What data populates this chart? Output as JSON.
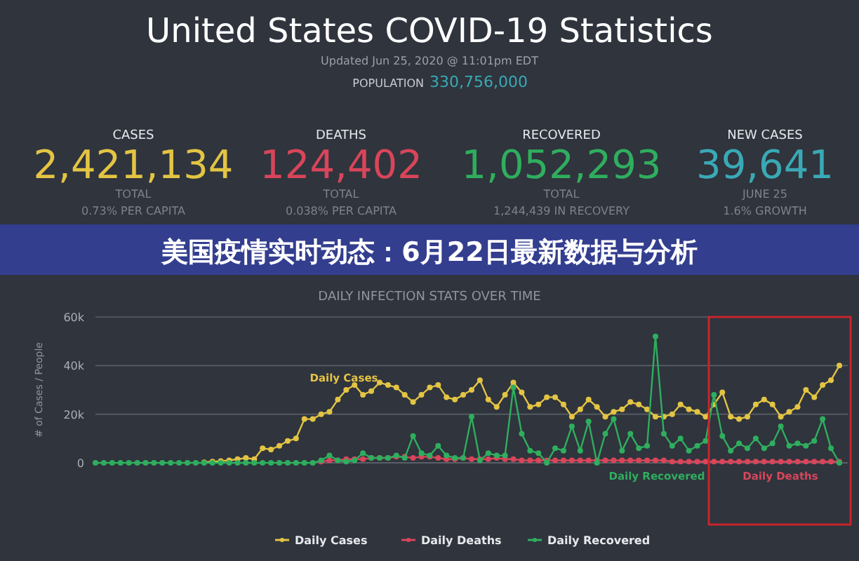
{
  "chart_data": [
    {
      "type": "other",
      "title": "United States COVID-19 Statistics",
      "subtitle": "Updated Jun 25, 2020 @ 11:01pm EDT",
      "annotations": [
        "POPULATION",
        "330,756,000",
        "CASES",
        "2,421,134",
        "TOTAL",
        "0.73% PER CAPITA",
        "DEATHS",
        "124,402",
        "TOTAL",
        "0.038% PER CAPITA",
        "RECOVERED",
        "1,052,293",
        "TOTAL",
        "1,244,439 IN RECOVERY",
        "NEW CASES",
        "39,641",
        "JUNE 25",
        "1.6% GROWTH",
        "美国疫情实时动态：6月22日最新数据与分析"
      ],
      "colors": [
        "#3aa9b5",
        "#e3c443",
        "#d9455a",
        "#2fae5e",
        "#3aa9b5"
      ]
    },
    {
      "type": "line",
      "title": "DAILY INFECTION STATS OVER TIME",
      "ylabel": "# of Cases / People",
      "categories": [
        null,
        null,
        null,
        null,
        null,
        null,
        null,
        null,
        null,
        null,
        null,
        null,
        null,
        null,
        null,
        null,
        null,
        null,
        null,
        null,
        null,
        null,
        null,
        null,
        null,
        null,
        null,
        null,
        null,
        null,
        null,
        null,
        null,
        null,
        null,
        null,
        null,
        null,
        null,
        null,
        null,
        null,
        null,
        null,
        null,
        null,
        null,
        null,
        null,
        null,
        null,
        null,
        null,
        null,
        null,
        null,
        null,
        null,
        null,
        null,
        null,
        null,
        null,
        null,
        null,
        null,
        null,
        null,
        null,
        null,
        null,
        null,
        null,
        null,
        null,
        null,
        null,
        null,
        null,
        null,
        null,
        null,
        null,
        null,
        null,
        null,
        null,
        null,
        null,
        null
      ],
      "ylim": [
        0,
        60000
      ],
      "yticks": [
        {
          "value": 0,
          "label": "0"
        },
        {
          "value": 20000,
          "label": "20k"
        },
        {
          "value": 40000,
          "label": "40k"
        },
        {
          "value": 60000,
          "label": "60k"
        }
      ],
      "grid": "y",
      "legend": "bottom",
      "marker": "circle",
      "series": [
        {
          "name": "Daily Cases",
          "color": "#e3c443",
          "values": [
            null,
            null,
            null,
            null,
            null,
            null,
            null,
            null,
            null,
            null,
            null,
            null,
            null,
            200,
            500,
            700,
            1000,
            1500,
            2000,
            1500,
            6000,
            5500,
            7000,
            9000,
            10000,
            18000,
            18000,
            20000,
            21000,
            26000,
            30000,
            32000,
            28000,
            29500,
            33000,
            32000,
            31000,
            28000,
            25000,
            28000,
            31000,
            32000,
            27000,
            26000,
            28000,
            30000,
            34000,
            26000,
            23000,
            28000,
            33000,
            29000,
            23000,
            24000,
            27000,
            27000,
            24000,
            19000,
            22000,
            26000,
            23000,
            19000,
            21000,
            22000,
            25000,
            24000,
            22000,
            19000,
            19000,
            20000,
            24000,
            22000,
            21000,
            19000,
            24000,
            29000,
            19000,
            18000,
            19000,
            24000,
            26000,
            24000,
            19000,
            21000,
            23000,
            30000,
            27000,
            32000,
            34000,
            40000
          ]
        },
        {
          "name": "Daily Deaths",
          "color": "#d9455a",
          "values": [
            null,
            null,
            null,
            null,
            null,
            null,
            null,
            null,
            null,
            null,
            null,
            null,
            null,
            null,
            null,
            null,
            null,
            null,
            null,
            null,
            null,
            null,
            null,
            null,
            null,
            null,
            null,
            500,
            1000,
            1000,
            1500,
            1500,
            1500,
            2000,
            2000,
            2000,
            2500,
            2500,
            2000,
            2500,
            2500,
            2000,
            1500,
            1500,
            2000,
            1500,
            1500,
            1500,
            2000,
            1500,
            1500,
            1000,
            1000,
            1000,
            1000,
            1000,
            1000,
            1000,
            1000,
            1000,
            1000,
            1000,
            1000,
            1000,
            1000,
            1000,
            1000,
            1000,
            1000,
            500,
            500,
            500,
            500,
            500,
            500,
            500,
            500,
            500,
            500,
            500,
            500,
            500,
            500,
            500,
            500,
            500,
            500,
            500,
            500,
            500
          ]
        },
        {
          "name": "Daily Recovered",
          "color": "#2fae5e",
          "values": [
            0,
            0,
            0,
            0,
            0,
            0,
            0,
            0,
            0,
            0,
            0,
            0,
            0,
            0,
            0,
            0,
            0,
            0,
            0,
            0,
            0,
            0,
            0,
            0,
            0,
            0,
            0,
            1000,
            3000,
            1000,
            500,
            1000,
            4000,
            2000,
            2000,
            2000,
            3000,
            2000,
            11000,
            4000,
            3000,
            7000,
            3000,
            2000,
            2000,
            19000,
            1000,
            4000,
            3000,
            3000,
            31000,
            12000,
            5000,
            4000,
            0,
            6000,
            5000,
            15000,
            5000,
            17000,
            0,
            12000,
            18000,
            5000,
            12000,
            6000,
            7000,
            52000,
            12000,
            7000,
            10000,
            5000,
            7000,
            9000,
            28000,
            11000,
            5000,
            8000,
            6000,
            10000,
            6000,
            8000,
            15000,
            7000,
            8000,
            7000,
            9000,
            18000,
            6000,
            0
          ]
        }
      ]
    }
  ]
}
